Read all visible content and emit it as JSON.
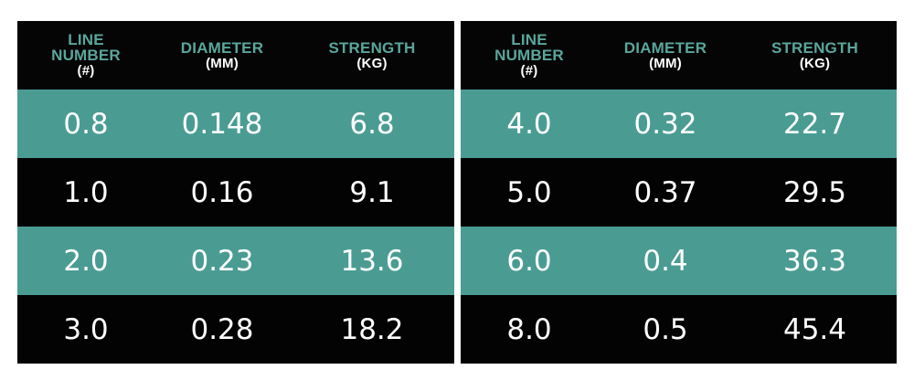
{
  "headers": {
    "line_number": [
      "LINE",
      "NUMBER"
    ],
    "line_number_unit": "(#)",
    "diameter": "DIAMETER",
    "diameter_unit": "(MM)",
    "strength": "STRENGTH",
    "strength_unit": "(KG)"
  },
  "colors": {
    "teal_row": "#4a9c93",
    "black_row": "#030303",
    "header_text": "#5aa69c"
  },
  "left_rows": [
    [
      "0.8",
      "0.148",
      "6.8"
    ],
    [
      "1.0",
      "0.16",
      "9.1"
    ],
    [
      "2.0",
      "0.23",
      "13.6"
    ],
    [
      "3.0",
      "0.28",
      "18.2"
    ]
  ],
  "right_rows": [
    [
      "4.0",
      "0.32",
      "22.7"
    ],
    [
      "5.0",
      "0.37",
      "29.5"
    ],
    [
      "6.0",
      "0.4",
      "36.3"
    ],
    [
      "8.0",
      "0.5",
      "45.4"
    ]
  ]
}
